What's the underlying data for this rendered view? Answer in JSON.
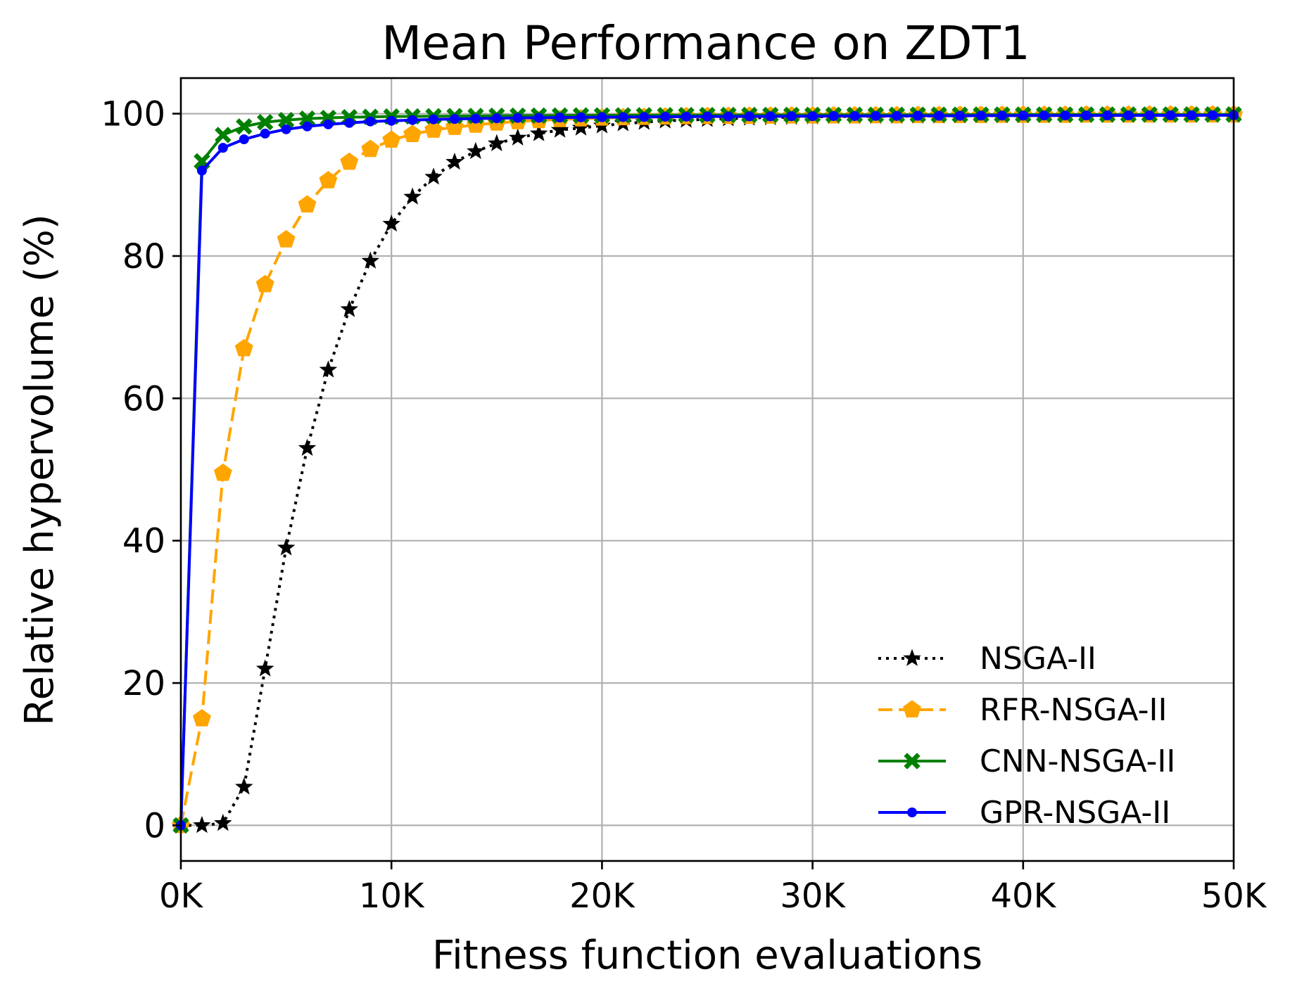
{
  "chart_data": {
    "type": "line",
    "title": "Mean Performance on ZDT1",
    "xlabel": "Fitness function evaluations",
    "ylabel": "Relative hypervolume (%)",
    "xlim": [
      0,
      50000
    ],
    "ylim": [
      -5,
      105
    ],
    "xticks": [
      {
        "value": 0,
        "label": "0K"
      },
      {
        "value": 10000,
        "label": "10K"
      },
      {
        "value": 20000,
        "label": "20K"
      },
      {
        "value": 30000,
        "label": "30K"
      },
      {
        "value": 40000,
        "label": "40K"
      },
      {
        "value": 50000,
        "label": "50K"
      }
    ],
    "yticks": [
      {
        "value": 0,
        "label": "0"
      },
      {
        "value": 20,
        "label": "20"
      },
      {
        "value": 40,
        "label": "40"
      },
      {
        "value": 60,
        "label": "60"
      },
      {
        "value": 80,
        "label": "80"
      },
      {
        "value": 100,
        "label": "100"
      }
    ],
    "grid": true,
    "legend_position": "lower-right",
    "x": [
      0,
      1000,
      2000,
      3000,
      4000,
      5000,
      6000,
      7000,
      8000,
      9000,
      10000,
      11000,
      12000,
      13000,
      14000,
      15000,
      16000,
      17000,
      18000,
      19000,
      20000,
      21000,
      22000,
      23000,
      24000,
      25000,
      26000,
      27000,
      28000,
      29000,
      30000,
      31000,
      32000,
      33000,
      34000,
      35000,
      36000,
      37000,
      38000,
      39000,
      40000,
      41000,
      42000,
      43000,
      44000,
      45000,
      46000,
      47000,
      48000,
      49000,
      50000
    ],
    "series": [
      {
        "name": "NSGA-II",
        "color": "#000000",
        "line_style": "dotted",
        "marker": "star",
        "values": [
          0,
          0,
          0.3,
          5.4,
          22,
          39,
          53,
          64,
          72.5,
          79.3,
          84.5,
          88.3,
          91.1,
          93.2,
          94.7,
          95.8,
          96.6,
          97.2,
          97.7,
          98.0,
          98.3,
          98.6,
          98.8,
          99.0,
          99.1,
          99.2,
          99.3,
          99.4,
          99.45,
          99.5,
          99.55,
          99.6,
          99.6,
          99.62,
          99.64,
          99.66,
          99.68,
          99.7,
          99.71,
          99.72,
          99.73,
          99.74,
          99.75,
          99.76,
          99.77,
          99.78,
          99.79,
          99.8,
          99.8,
          99.8,
          99.8
        ]
      },
      {
        "name": "RFR-NSGA-II",
        "color": "#FFA500",
        "line_style": "dashed",
        "marker": "pentagon",
        "values": [
          0,
          15,
          49.5,
          67,
          76,
          82.3,
          87.2,
          90.6,
          93.2,
          95,
          96.3,
          97.1,
          97.7,
          98.1,
          98.4,
          98.7,
          98.9,
          99.05,
          99.2,
          99.3,
          99.4,
          99.45,
          99.5,
          99.55,
          99.6,
          99.62,
          99.64,
          99.66,
          99.68,
          99.7,
          99.7,
          99.72,
          99.72,
          99.74,
          99.74,
          99.76,
          99.76,
          99.78,
          99.78,
          99.8,
          99.8,
          99.8,
          99.8,
          99.82,
          99.82,
          99.82,
          99.84,
          99.84,
          99.84,
          99.85,
          99.85
        ]
      },
      {
        "name": "CNN-NSGA-II",
        "color": "#008000",
        "line_style": "solid",
        "marker": "x-filled",
        "values": [
          0,
          93.3,
          97,
          98.2,
          98.8,
          99.1,
          99.3,
          99.4,
          99.5,
          99.55,
          99.6,
          99.62,
          99.64,
          99.66,
          99.68,
          99.7,
          99.72,
          99.73,
          99.74,
          99.75,
          99.76,
          99.77,
          99.78,
          99.79,
          99.8,
          99.8,
          99.81,
          99.81,
          99.82,
          99.82,
          99.83,
          99.83,
          99.84,
          99.84,
          99.84,
          99.85,
          99.85,
          99.85,
          99.86,
          99.86,
          99.86,
          99.87,
          99.87,
          99.87,
          99.88,
          99.88,
          99.88,
          99.88,
          99.89,
          99.89,
          99.89
        ]
      },
      {
        "name": "GPR-NSGA-II",
        "color": "#0000FF",
        "line_style": "solid",
        "marker": "circle",
        "values": [
          0,
          92,
          95.2,
          96.4,
          97.2,
          97.8,
          98.2,
          98.5,
          98.7,
          98.9,
          99.0,
          99.1,
          99.2,
          99.25,
          99.3,
          99.35,
          99.4,
          99.42,
          99.45,
          99.48,
          99.5,
          99.52,
          99.54,
          99.56,
          99.58,
          99.6,
          99.6,
          99.62,
          99.62,
          99.64,
          99.64,
          99.66,
          99.66,
          99.68,
          99.68,
          99.7,
          99.7,
          99.7,
          99.72,
          99.72,
          99.72,
          99.74,
          99.74,
          99.74,
          99.75,
          99.75,
          99.76,
          99.76,
          99.76,
          99.77,
          99.77
        ]
      }
    ]
  }
}
